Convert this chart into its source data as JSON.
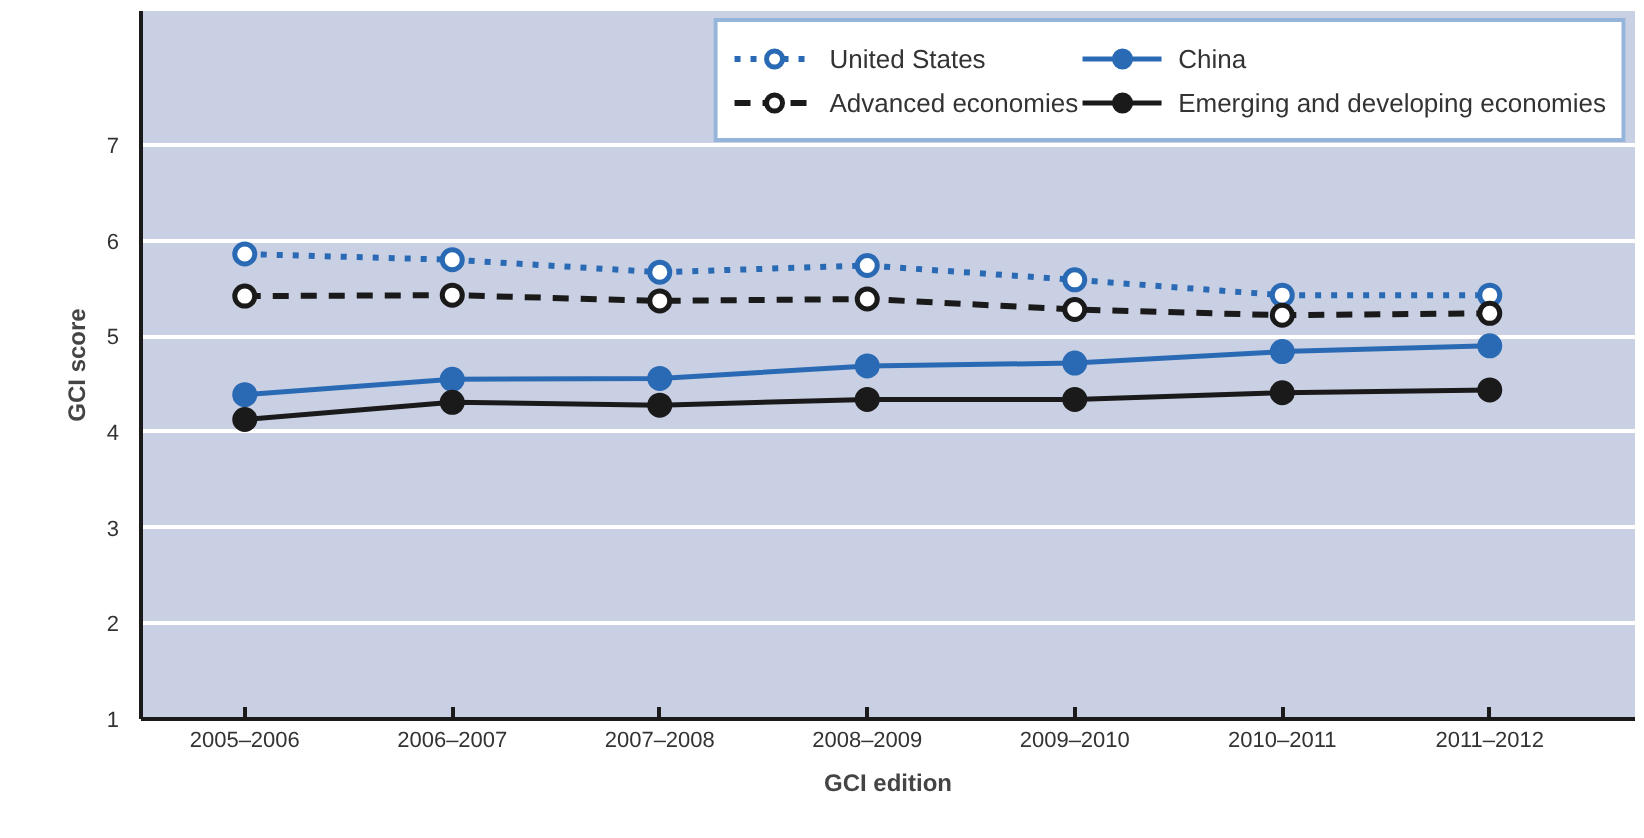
{
  "chart_data": {
    "type": "line",
    "xlabel": "GCI edition",
    "ylabel": "GCI score",
    "categories": [
      "2005–2006",
      "2006–2007",
      "2007–2008",
      "2008–2009",
      "2009–2010",
      "2010–2011",
      "2011–2012"
    ],
    "series": [
      {
        "name": "United States",
        "color": "#2a6ab5",
        "line_style": "dotted",
        "values": [
          5.86,
          5.8,
          5.67,
          5.74,
          5.59,
          5.43,
          5.43
        ]
      },
      {
        "name": "Advanced economies",
        "color": "#1a1a1a",
        "line_style": "dashed",
        "values": [
          5.42,
          5.43,
          5.37,
          5.39,
          5.28,
          5.22,
          5.24
        ]
      },
      {
        "name": "China",
        "color": "#2a6ab5",
        "line_style": "solid",
        "values": [
          4.39,
          4.55,
          4.56,
          4.69,
          4.72,
          4.84,
          4.9
        ]
      },
      {
        "name": "Emerging and developing economies",
        "color": "#1a1a1a",
        "line_style": "solid",
        "values": [
          4.13,
          4.31,
          4.28,
          4.34,
          4.34,
          4.41,
          4.44
        ]
      }
    ],
    "ylim": [
      1,
      8.4
    ],
    "yticks": [
      1,
      2,
      3,
      4,
      5,
      6,
      7
    ],
    "grid": "y",
    "legend": "top right",
    "marker": "circle"
  }
}
